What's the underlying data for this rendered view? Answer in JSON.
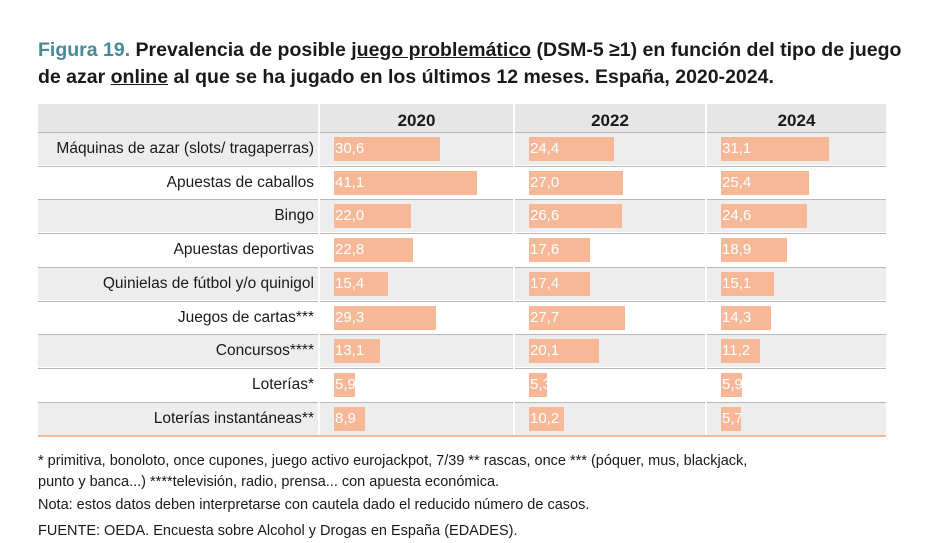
{
  "figure": {
    "label": "Figura 19.",
    "title_part1": "Prevalencia de posible ",
    "title_underlined1": "juego problemático",
    "title_part2": " (DSM-5 ≥1) en función del tipo de juego de azar ",
    "title_underlined2": "online",
    "title_part3": " al que se ha jugado en los últimos 12 meses. España, 2020-2024."
  },
  "colors": {
    "accent": "#4a8a94",
    "bar": "#f6b897"
  },
  "chart_data": {
    "type": "bar",
    "orientation": "horizontal",
    "categories": [
      "Máquinas de azar (slots/ tragaperras)",
      "Apuestas de caballos",
      "Bingo",
      "Apuestas deportivas",
      "Quinielas de fútbol y/o quinigol",
      "Juegos de cartas***",
      "Concursos****",
      "Loterías*",
      "Loterías instantáneas**"
    ],
    "series": [
      {
        "name": "2020",
        "values": [
          30.6,
          41.1,
          22.0,
          22.8,
          15.4,
          29.3,
          13.1,
          5.9,
          8.9
        ],
        "labels": [
          "30,6",
          "41,1",
          "22,0",
          "22,8",
          "15,4",
          "29,3",
          "13,1",
          "5,9",
          "8,9"
        ]
      },
      {
        "name": "2022",
        "values": [
          24.4,
          27.0,
          26.6,
          17.6,
          17.4,
          27.7,
          20.1,
          5.3,
          10.2
        ],
        "labels": [
          "24,4",
          "27,0",
          "26,6",
          "17,6",
          "17,4",
          "27,7",
          "20,1",
          "5,3",
          "10,2"
        ]
      },
      {
        "name": "2024",
        "values": [
          31.1,
          25.4,
          24.6,
          18.9,
          15.1,
          14.3,
          11.2,
          5.9,
          5.7
        ],
        "labels": [
          "31,1",
          "25,4",
          "24,6",
          "18,9",
          "15,1",
          "14,3",
          "11,2",
          "5,9",
          "5,7"
        ]
      }
    ],
    "xlim": [
      0,
      45
    ]
  },
  "footnotes": {
    "line1": "* primitiva, bonoloto, once cupones, juego activo eurojackpot, 7/39   ** rascas, once *** (póquer, mus, blackjack,",
    "line2": "punto y banca...)  ****televisión, radio, prensa... con apuesta económica.",
    "note": "Nota: estos datos deben interpretarse con cautela dado el reducido número de casos.",
    "source": "FUENTE: OEDA. Encuesta sobre Alcohol y Drogas en España (EDADES)."
  }
}
